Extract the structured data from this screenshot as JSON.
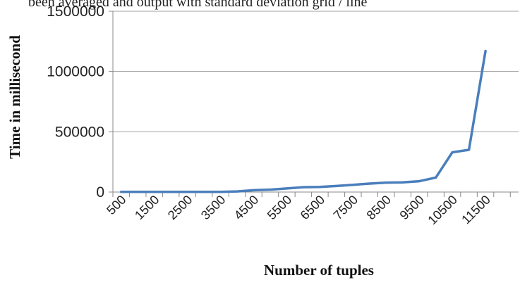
{
  "header_fragment": "been averaged and output with standard deviation grid / line",
  "chart_data": {
    "type": "line",
    "title": "",
    "xlabel": "Number of tuples",
    "ylabel": "Time in millisecond",
    "ylim": [
      0,
      1500000
    ],
    "yticks": [
      0,
      500000,
      1000000,
      1500000
    ],
    "ytick_labels": [
      "0",
      "500000",
      "1000000",
      "1500000"
    ],
    "x": [
      500,
      1000,
      1500,
      2000,
      2500,
      3000,
      3500,
      4000,
      4500,
      5000,
      5500,
      6000,
      6500,
      7000,
      7500,
      8000,
      8500,
      9000,
      9500,
      10000,
      10500,
      11000,
      11500
    ],
    "xtick_labels": [
      "500",
      "1500",
      "2500",
      "3500",
      "4500",
      "5500",
      "6500",
      "7500",
      "8500",
      "9500",
      "10500",
      "11500"
    ],
    "series": [
      {
        "values": [
          1000,
          1000,
          1000,
          1000,
          1000,
          1000,
          1000,
          5000,
          15000,
          20000,
          30000,
          40000,
          42000,
          50000,
          60000,
          70000,
          78000,
          80000,
          90000,
          120000,
          330000,
          350000,
          1170000
        ]
      }
    ],
    "grid": true,
    "legend": "none",
    "line_color": "#4a7ebb",
    "grid_color": "#a0a0a0",
    "axis_color": "#888888"
  }
}
